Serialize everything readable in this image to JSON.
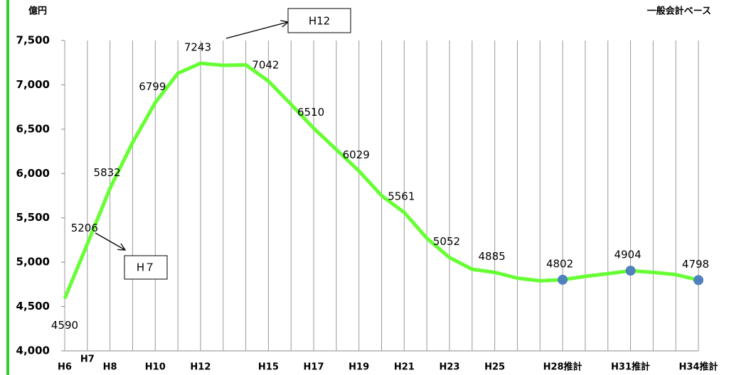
{
  "chart_data": {
    "type": "line",
    "y_unit": "億円",
    "subtitle": "一般会計ベース",
    "categories": [
      "H6",
      "H7",
      "H8",
      null,
      "H10",
      null,
      "H12",
      null,
      null,
      "H15",
      null,
      "H17",
      null,
      "H19",
      null,
      "H21",
      null,
      "H23",
      null,
      "H25",
      null,
      null,
      "H28推計",
      null,
      null,
      "H31推計",
      null,
      null,
      "H34推計"
    ],
    "series": [
      {
        "color": "#66ff33",
        "style": "line",
        "values": [
          4590,
          5206,
          5832,
          6350,
          6799,
          7130,
          7243,
          7220,
          7225,
          7042,
          6780,
          6510,
          6270,
          6029,
          5750,
          5561,
          5270,
          5052,
          4920,
          4885,
          4820,
          4790,
          4802,
          4840,
          4870,
          4904,
          4885,
          4860,
          4798
        ],
        "value_labels": [
          "4590",
          "5206",
          "5832",
          null,
          "6799",
          null,
          "7243",
          null,
          null,
          "7042",
          null,
          "6510",
          null,
          "6029",
          null,
          "5561",
          null,
          "5052",
          null,
          "4885",
          null,
          null,
          "4802",
          null,
          null,
          "4904",
          null,
          null,
          "4798"
        ]
      },
      {
        "color": "#4f81bd",
        "style": "marker",
        "values": [
          null,
          null,
          null,
          null,
          null,
          null,
          null,
          null,
          null,
          null,
          null,
          null,
          null,
          null,
          null,
          null,
          null,
          null,
          null,
          null,
          null,
          null,
          4802,
          null,
          null,
          4904,
          null,
          null,
          4798
        ]
      }
    ],
    "ylim": [
      4000,
      7500
    ],
    "yticks": [
      {
        "value": 4000,
        "label": "4,000"
      },
      {
        "value": 4500,
        "label": "4,500"
      },
      {
        "value": 5000,
        "label": "5,000"
      },
      {
        "value": 5500,
        "label": "5,500"
      },
      {
        "value": 6000,
        "label": "6,000"
      },
      {
        "value": 6500,
        "label": "6,500"
      },
      {
        "value": 7000,
        "label": "7,000"
      },
      {
        "value": 7500,
        "label": "7,500"
      }
    ],
    "grid": "x",
    "annotations": [
      {
        "text": "H12"
      },
      {
        "text": "H７"
      }
    ]
  }
}
